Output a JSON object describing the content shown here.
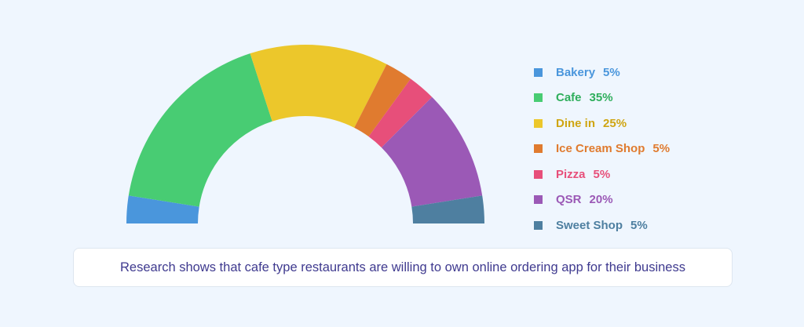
{
  "chart_data": {
    "type": "pie",
    "variant": "semi-donut",
    "categories": [
      "Bakery",
      "Cafe",
      "Dine in",
      "Ice Cream Shop",
      "Pizza",
      "QSR",
      "Sweet Shop"
    ],
    "values": [
      5,
      35,
      25,
      5,
      5,
      20,
      5
    ],
    "value_labels": [
      "5%",
      "35%",
      "25%",
      "5%",
      "5%",
      "20%",
      "5%"
    ],
    "colors": [
      "#4a96dc",
      "#48cc73",
      "#ecc72b",
      "#e07b2f",
      "#e74f7a",
      "#9b59b6",
      "#4e7fa0"
    ],
    "text_colors": [
      "#4a96dc",
      "#2fae5c",
      "#cfa512",
      "#e07b2f",
      "#e74f7a",
      "#9b59b6",
      "#4e7fa0"
    ],
    "legend_position": "right"
  },
  "note": "Research shows that cafe type restaurants are willing to own online ordering app for their business"
}
